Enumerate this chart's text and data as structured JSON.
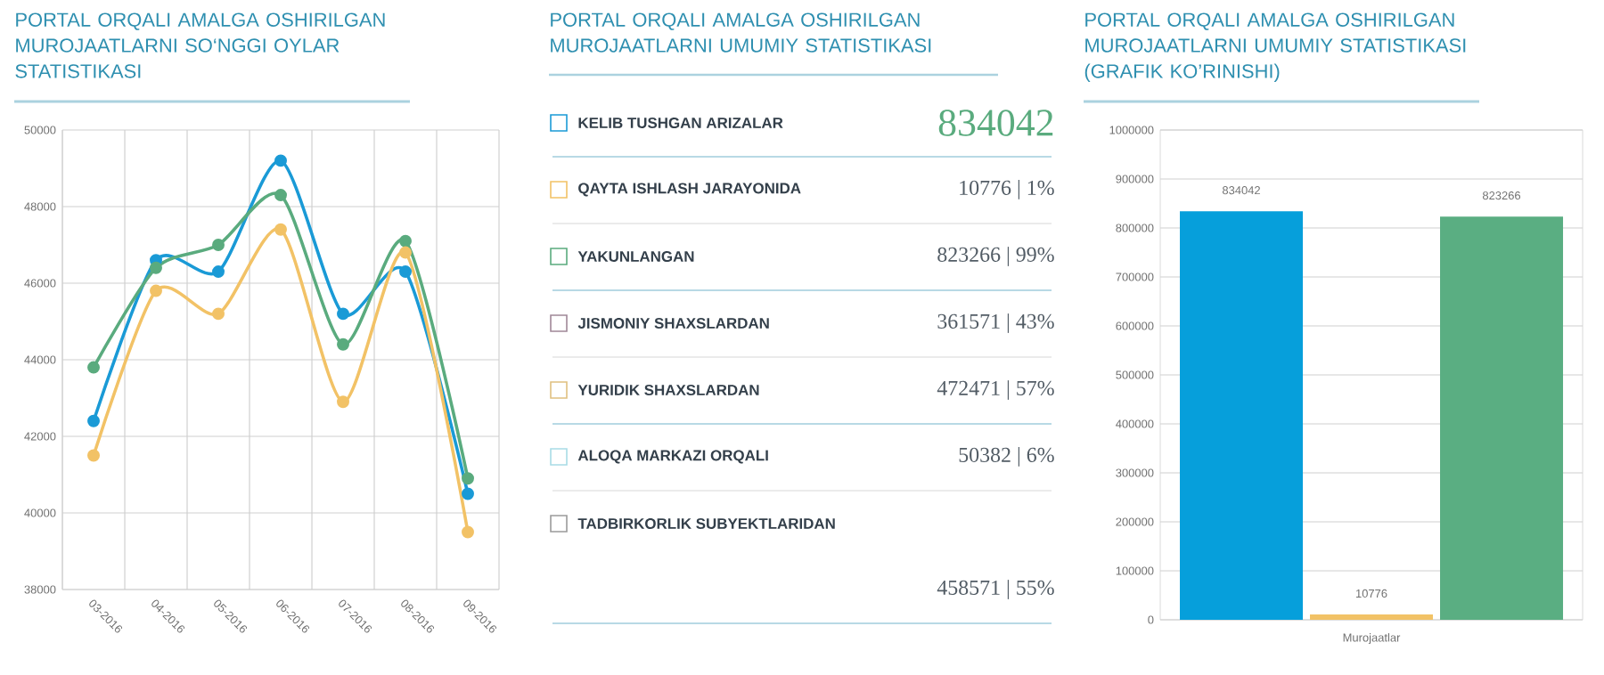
{
  "chart_data": [
    {
      "type": "line",
      "title": "PORTAL ORQALI AMALGA OSHIRILGAN MUROJAATLARNI SO‘NGGI OYLAR STATISTIKASI",
      "categories": [
        "03-2016",
        "04-2016",
        "05-2016",
        "06-2016",
        "07-2016",
        "08-2016",
        "09-2016"
      ],
      "series": [
        {
          "color": "#1a9ad6",
          "values": [
            42400,
            46600,
            46300,
            49200,
            45200,
            46300,
            40500
          ]
        },
        {
          "color": "#5aab7e",
          "values": [
            43800,
            46400,
            47000,
            48300,
            44400,
            47100,
            40900
          ]
        },
        {
          "color": "#f2c266",
          "values": [
            41500,
            45800,
            45200,
            47400,
            42900,
            46800,
            39500
          ]
        }
      ],
      "ylim": [
        38000,
        50000
      ],
      "yticks": [
        38000,
        40000,
        42000,
        44000,
        46000,
        48000,
        50000
      ],
      "grid": true,
      "marker": "circle"
    },
    {
      "type": "other",
      "title": "PORTAL ORQALI AMALGA OSHIRILGAN MUROJAATLARNI UMUMIY STATISTIKASI",
      "annotations": [
        "KELIB TUSHGAN ARIZALAR",
        "834042",
        "QAYTA ISHLASH JARAYONIDA",
        "10776 | 1%",
        "YAKUNLANGAN",
        "823266 | 99%",
        "JISMONIY SHAXSLARDAN",
        "361571 | 43%",
        "YURIDIK SHAXSLARDAN",
        "472471 | 57%",
        "ALOQA MARKAZI ORQALI",
        "50382 | 6%",
        "TADBIRKORLIK SUBYEKTLARIDAN",
        "458571 | 55%"
      ],
      "colors": [
        "#1a9ad6",
        "#f2c266",
        "#5aab7e",
        "#a08898",
        "#e0c080",
        "#a8dce6",
        "#9a9a9a"
      ]
    },
    {
      "type": "bar",
      "title": "PORTAL ORQALI AMALGA OSHIRILGAN MUROJAATLARNI UMUMIY STATISTIKASI (GRAFIK KO’RINISHI)",
      "categories": [
        "Murojaatlar"
      ],
      "series": [
        {
          "color": "#069fdb",
          "values": [
            834042
          ]
        },
        {
          "color": "#f2c266",
          "values": [
            10776
          ]
        },
        {
          "color": "#5aae82",
          "values": [
            823266
          ]
        }
      ],
      "ylim": [
        0,
        1000000
      ],
      "yticks": [
        0,
        100000,
        200000,
        300000,
        400000,
        500000,
        600000,
        700000,
        800000,
        900000,
        1000000
      ],
      "grid": "y",
      "data_labels": true
    }
  ]
}
